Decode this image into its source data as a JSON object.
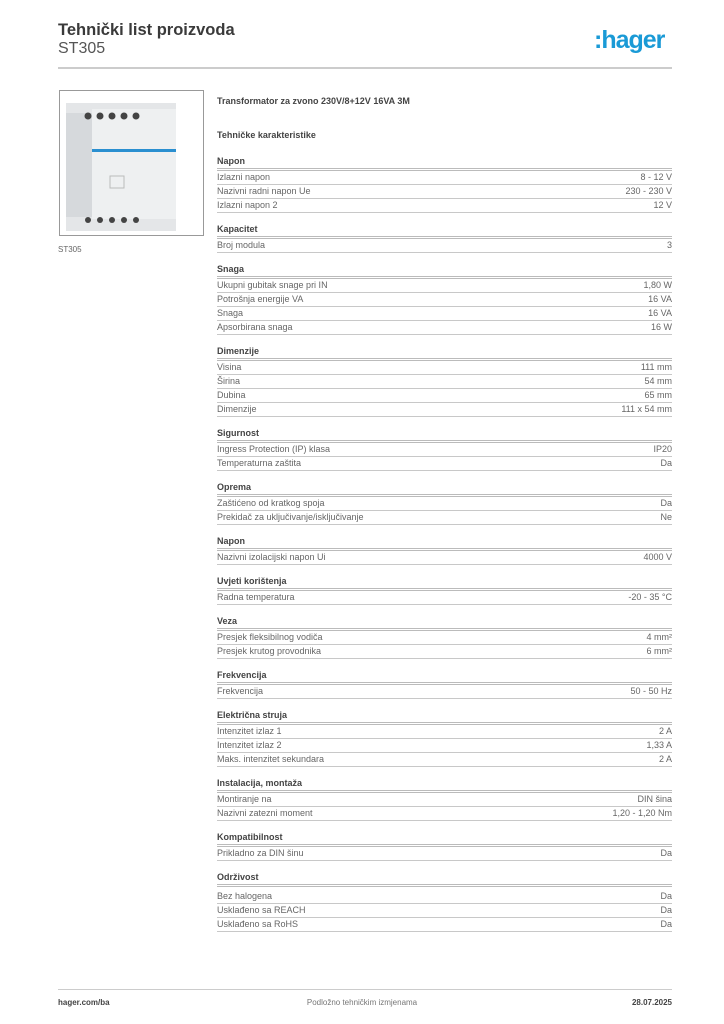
{
  "header": {
    "title": "Tehnički list proizvoda",
    "subtitle": "ST305",
    "logo": ":hager"
  },
  "product": {
    "image_caption": "ST305",
    "name": "Transformator za zvono 230V/8+12V 16VA 3M",
    "section_title": "Tehničke karakteristike"
  },
  "sections": [
    {
      "title": "Napon",
      "rows": [
        [
          "Izlazni napon",
          "8 - 12 V"
        ],
        [
          "Nazivni radni napon Ue",
          "230 - 230 V"
        ],
        [
          "Izlazni napon 2",
          "12 V"
        ]
      ]
    },
    {
      "title": "Kapacitet",
      "rows": [
        [
          "Broj modula",
          "3"
        ]
      ]
    },
    {
      "title": "Snaga",
      "rows": [
        [
          "Ukupni gubitak snage pri IN",
          "1,80 W"
        ],
        [
          "Potrošnja energije VA",
          "16 VA"
        ],
        [
          "Snaga",
          "16 VA"
        ],
        [
          "Apsorbirana snaga",
          "16 W"
        ]
      ]
    },
    {
      "title": "Dimenzije",
      "rows": [
        [
          "Visina",
          "111 mm"
        ],
        [
          "Širina",
          "54 mm"
        ],
        [
          "Dubina",
          "65 mm"
        ],
        [
          "Dimenzije",
          "111 x 54 mm"
        ]
      ]
    },
    {
      "title": "Sigurnost",
      "rows": [
        [
          "Ingress Protection (IP) klasa",
          "IP20"
        ],
        [
          "Temperaturna zaštita",
          "Da"
        ]
      ]
    },
    {
      "title": "Oprema",
      "rows": [
        [
          "Zaštićeno od kratkog spoja",
          "Da"
        ],
        [
          "Prekidač za uključivanje/isključivanje",
          "Ne"
        ]
      ]
    },
    {
      "title": "Napon",
      "rows": [
        [
          "Nazivni izolacijski napon Ui",
          "4000 V"
        ]
      ]
    },
    {
      "title": "Uvjeti korištenja",
      "rows": [
        [
          "Radna temperatura",
          "-20 - 35 °C"
        ]
      ]
    },
    {
      "title": "Veza",
      "rows": [
        [
          "Presjek fleksibilnog vodiča",
          "4 mm²"
        ],
        [
          "Presjek krutog provodnika",
          "6 mm²"
        ]
      ]
    },
    {
      "title": "Frekvencija",
      "rows": [
        [
          "Frekvencija",
          "50 - 50 Hz"
        ]
      ]
    },
    {
      "title": "Električna struja",
      "rows": [
        [
          "Intenzitet izlaz 1",
          "2 A"
        ],
        [
          "Intenzitet izlaz 2",
          "1,33 A"
        ],
        [
          "Maks. intenzitet sekundara",
          "2 A"
        ]
      ]
    },
    {
      "title": "Instalacija, montaža",
      "rows": [
        [
          "Montiranje na",
          "DIN šina"
        ],
        [
          "Nazivni zatezni moment",
          "1,20 - 1,20 Nm"
        ]
      ]
    },
    {
      "title": "Kompatibilnost",
      "rows": [
        [
          "Prikladno za DIN šinu",
          "Da"
        ]
      ]
    },
    {
      "title": "Održivost",
      "rows": [
        [
          "Bez halogena",
          "Da"
        ],
        [
          "Usklađeno sa REACH",
          "Da"
        ],
        [
          "Usklađeno sa RoHS",
          "Da"
        ]
      ]
    }
  ],
  "footer": {
    "left": "hager.com/ba",
    "center": "Podložno tehničkim izmjenama",
    "right": "28.07.2025"
  },
  "colors": {
    "brand": "#1a9ad6"
  }
}
